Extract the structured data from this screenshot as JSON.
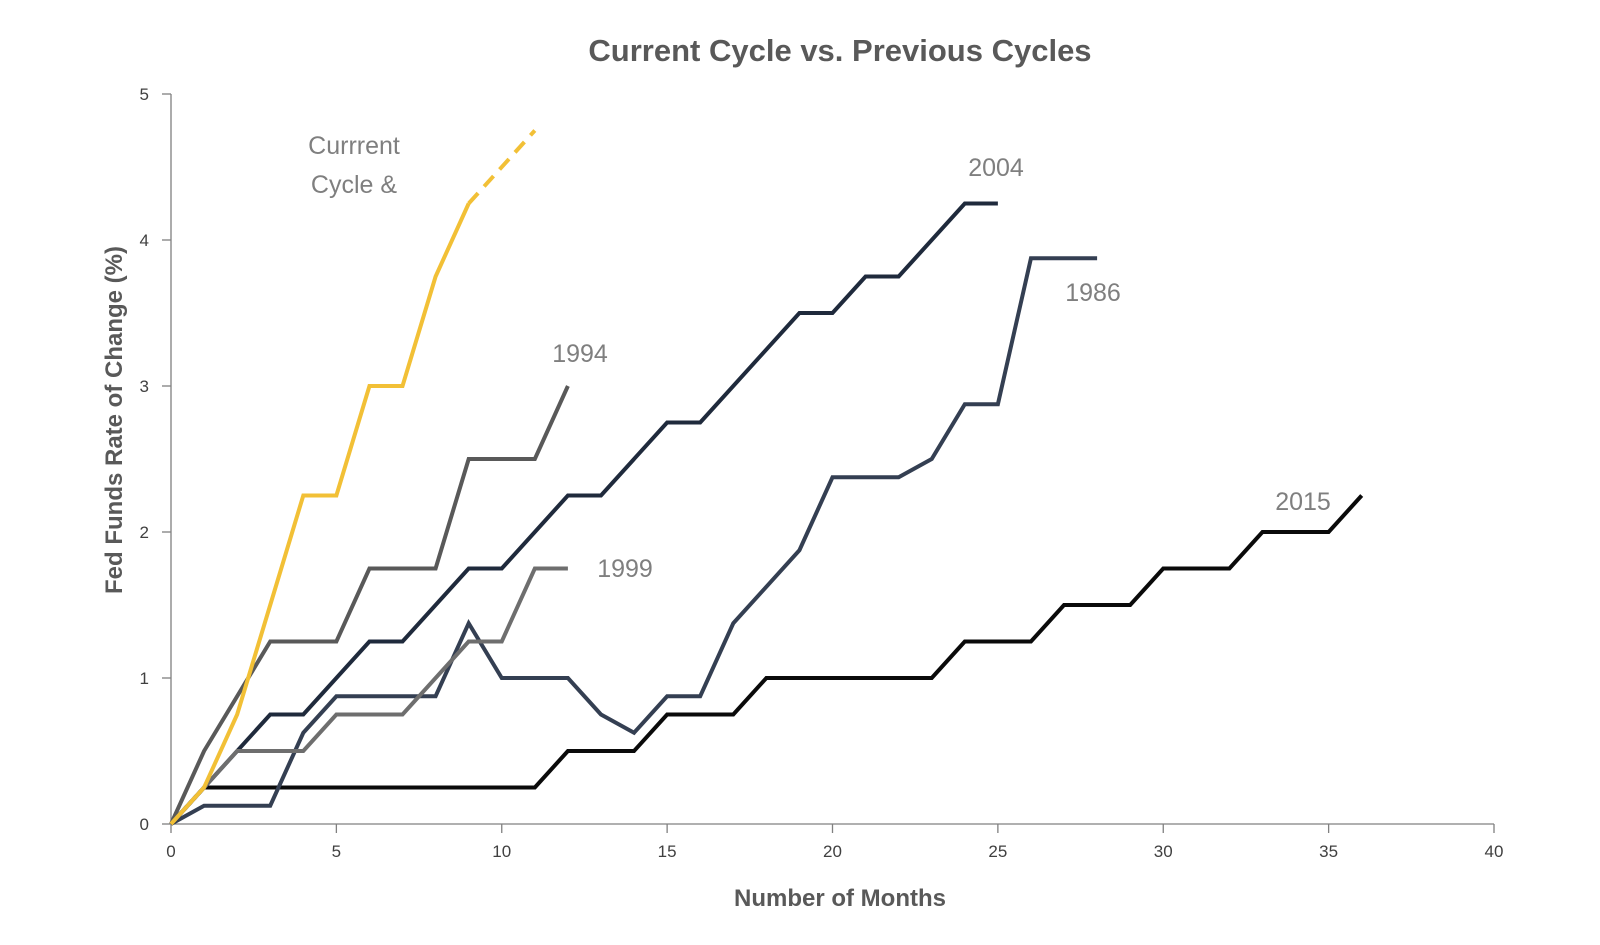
{
  "chart_data": {
    "type": "line",
    "title": "Current Cycle vs. Previous Cycles",
    "xlabel": "Number of Months",
    "ylabel": "Fed Funds Rate of Change (%)",
    "xlim": [
      0,
      40
    ],
    "ylim": [
      0,
      5
    ],
    "x_ticks": [
      0,
      5,
      10,
      15,
      20,
      25,
      30,
      35,
      40
    ],
    "y_ticks": [
      0,
      1,
      2,
      3,
      4,
      5
    ],
    "grid": false,
    "legend": "none",
    "series": [
      {
        "key": "current",
        "name": "Currrent Cycle &",
        "label_lines": [
          "Currrent",
          "Cycle &"
        ],
        "color": "#F2C036",
        "x": [
          0,
          1,
          2,
          3,
          4,
          5,
          6,
          7,
          8,
          9
        ],
        "y": [
          0,
          0.25,
          0.75,
          1.5,
          2.25,
          2.25,
          3.0,
          3.0,
          3.75,
          4.25
        ],
        "projection": {
          "x": [
            9,
            11
          ],
          "y": [
            4.25,
            4.75
          ],
          "style": "dashed"
        }
      },
      {
        "key": "1994",
        "name": "1994",
        "label_lines": [
          "1994"
        ],
        "color": "#595959",
        "x": [
          0,
          1,
          3,
          5,
          6,
          8,
          9,
          11,
          12
        ],
        "y": [
          0,
          0.5,
          1.25,
          1.25,
          1.75,
          1.75,
          2.5,
          2.5,
          3.0
        ]
      },
      {
        "key": "1999",
        "name": "1999",
        "label_lines": [
          "1999"
        ],
        "color": "#6E6E6E",
        "x": [
          0,
          1,
          2,
          4,
          5,
          7,
          9,
          10,
          11,
          12
        ],
        "y": [
          0,
          0.25,
          0.5,
          0.5,
          0.75,
          0.75,
          1.25,
          1.25,
          1.75,
          1.75
        ]
      },
      {
        "key": "2004",
        "name": "2004",
        "label_lines": [
          "2004"
        ],
        "color": "#1F2A3C",
        "x": [
          0,
          1,
          3,
          4,
          6,
          7,
          9,
          10,
          12,
          13,
          15,
          16,
          19,
          20,
          21,
          22,
          24,
          25
        ],
        "y": [
          0,
          0.25,
          0.75,
          0.75,
          1.25,
          1.25,
          1.75,
          1.75,
          2.25,
          2.25,
          2.75,
          2.75,
          3.5,
          3.5,
          3.75,
          3.75,
          4.25,
          4.25
        ]
      },
      {
        "key": "1986",
        "name": "1986",
        "label_lines": [
          "1986"
        ],
        "color": "#343F52",
        "x": [
          0,
          1,
          3,
          4,
          5,
          8,
          9,
          10,
          12,
          13,
          14,
          15,
          16,
          17,
          19,
          20,
          22,
          23,
          24,
          25,
          26,
          28
        ],
        "y": [
          0,
          0.125,
          0.125,
          0.625,
          0.875,
          0.875,
          1.375,
          1.0,
          1.0,
          0.75,
          0.625,
          0.875,
          0.875,
          1.375,
          1.875,
          2.375,
          2.375,
          2.5,
          2.875,
          2.875,
          3.875,
          3.875
        ]
      },
      {
        "key": "2015",
        "name": "2015",
        "label_lines": [
          "2015"
        ],
        "color": "#0A0A0A",
        "x": [
          0,
          1,
          11,
          12,
          14,
          15,
          17,
          18,
          23,
          24,
          26,
          27,
          29,
          30,
          32,
          33,
          35,
          36
        ],
        "y": [
          0,
          0.25,
          0.25,
          0.5,
          0.5,
          0.75,
          0.75,
          1.0,
          1.0,
          1.25,
          1.25,
          1.5,
          1.5,
          1.75,
          1.75,
          2.0,
          2.0,
          2.25
        ]
      }
    ]
  }
}
